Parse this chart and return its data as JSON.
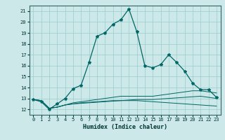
{
  "title": "",
  "xlabel": "Humidex (Indice chaleur)",
  "ylabel": "",
  "xlim": [
    -0.5,
    23.5
  ],
  "ylim": [
    11.5,
    21.5
  ],
  "xticks": [
    0,
    1,
    2,
    3,
    4,
    5,
    6,
    7,
    8,
    9,
    10,
    11,
    12,
    13,
    14,
    15,
    16,
    17,
    18,
    19,
    20,
    21,
    22,
    23
  ],
  "yticks": [
    12,
    13,
    14,
    15,
    16,
    17,
    18,
    19,
    20,
    21
  ],
  "bg_color": "#cce8e8",
  "grid_color": "#99cccc",
  "line_color": "#006666",
  "main_x": [
    0,
    1,
    2,
    3,
    4,
    5,
    6,
    7,
    8,
    9,
    10,
    11,
    12,
    13,
    14,
    15,
    16,
    17,
    18,
    19,
    20,
    21,
    22,
    23
  ],
  "main_y": [
    12.9,
    12.7,
    12.0,
    12.5,
    13.0,
    13.9,
    14.2,
    16.3,
    18.7,
    19.0,
    19.8,
    20.2,
    21.2,
    19.1,
    16.0,
    15.8,
    16.1,
    17.0,
    16.3,
    15.5,
    14.4,
    13.8,
    13.8,
    13.1
  ],
  "line2_x": [
    0,
    1,
    2,
    3,
    4,
    5,
    6,
    7,
    8,
    9,
    10,
    11,
    12,
    13,
    14,
    15,
    16,
    17,
    18,
    19,
    20,
    21,
    22,
    23
  ],
  "line2_y": [
    12.9,
    12.8,
    12.1,
    12.2,
    12.4,
    12.6,
    12.7,
    12.8,
    12.9,
    13.0,
    13.1,
    13.2,
    13.2,
    13.2,
    13.2,
    13.2,
    13.3,
    13.4,
    13.5,
    13.6,
    13.7,
    13.7,
    13.6,
    13.5
  ],
  "line3_x": [
    0,
    1,
    2,
    3,
    4,
    5,
    6,
    7,
    8,
    9,
    10,
    11,
    12,
    13,
    14,
    15,
    16,
    17,
    18,
    19,
    20,
    21,
    22,
    23
  ],
  "line3_y": [
    12.9,
    12.8,
    12.1,
    12.2,
    12.4,
    12.5,
    12.6,
    12.65,
    12.7,
    12.75,
    12.8,
    12.8,
    12.8,
    12.8,
    12.75,
    12.7,
    12.65,
    12.6,
    12.55,
    12.5,
    12.45,
    12.4,
    12.35,
    12.3
  ],
  "line4_x": [
    0,
    1,
    2,
    3,
    4,
    5,
    6,
    7,
    8,
    9,
    10,
    11,
    12,
    13,
    14,
    15,
    16,
    17,
    18,
    19,
    20,
    21,
    22,
    23
  ],
  "line4_y": [
    12.9,
    12.8,
    12.1,
    12.2,
    12.4,
    12.5,
    12.55,
    12.6,
    12.65,
    12.7,
    12.75,
    12.8,
    12.85,
    12.9,
    12.9,
    12.9,
    12.95,
    13.0,
    13.05,
    13.1,
    13.15,
    13.2,
    13.1,
    13.0
  ],
  "label_fontsize": 5,
  "xlabel_fontsize": 6
}
